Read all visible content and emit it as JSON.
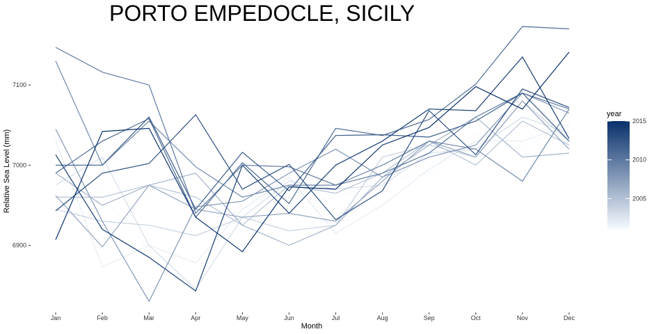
{
  "chart_data": {
    "type": "line",
    "title": "PORTO EMPEDOCLE, SICILY",
    "xlabel": "Month",
    "ylabel": "Relative Sea Level (mm)",
    "categories": [
      "Jan",
      "Feb",
      "Mar",
      "Apr",
      "May",
      "Jun",
      "Jul",
      "Aug",
      "Sep",
      "Oct",
      "Nov",
      "Dec"
    ],
    "yticks": [
      6900,
      7000,
      7100
    ],
    "ylim": [
      6818,
      7180
    ],
    "grid": false,
    "legend": {
      "title": "year",
      "position": "right",
      "range": [
        2001,
        2015
      ],
      "ticks": [
        2005,
        2010,
        2015
      ],
      "color_low": "#f7fbff",
      "color_high": "#08306b"
    },
    "series": [
      {
        "year": 2001,
        "values": [
          7035,
          6960,
          6895,
          6850,
          6960,
          6950,
          6960,
          6980,
          6990,
          7040,
          7020,
          7055
        ]
      },
      {
        "year": 2002,
        "values": [
          7030,
          6873,
          6900,
          6878,
          6945,
          6985,
          6915,
          6950,
          6995,
          7030,
          7030,
          7050
        ]
      },
      {
        "year": 2003,
        "values": [
          6975,
          7010,
          6900,
          6845,
          6935,
          6980,
          6970,
          6975,
          7015,
          7020,
          7060,
          7040
        ]
      },
      {
        "year": 2004,
        "values": [
          6945,
          6930,
          6925,
          6912,
          6935,
          6918,
          6925,
          7010,
          7025,
          7010,
          7080,
          7030
        ]
      },
      {
        "year": 2005,
        "values": [
          6960,
          6960,
          6975,
          6960,
          6925,
          6975,
          6965,
          6990,
          7030,
          7000,
          7055,
          7025
        ]
      },
      {
        "year": 2006,
        "values": [
          6990,
          6950,
          6975,
          6990,
          6925,
          6900,
          6925,
          6985,
          7025,
          7060,
          7010,
          7015
        ]
      },
      {
        "year": 2007,
        "values": [
          6962,
          6898,
          6975,
          6945,
          6935,
          6940,
          6930,
          6980,
          7030,
          7010,
          7080,
          7020
        ]
      },
      {
        "year": 2008,
        "values": [
          7045,
          6930,
          6830,
          6948,
          6955,
          6990,
          7020,
          6985,
          7010,
          7025,
          7090,
          7065
        ]
      },
      {
        "year": 2009,
        "values": [
          7130,
          7000,
          7055,
          6998,
          6960,
          6975,
          6975,
          7000,
          7030,
          7020,
          6980,
          7070
        ]
      },
      {
        "year": 2010,
        "values": [
          7147,
          7116,
          7100,
          6940,
          7000,
          6998,
          6975,
          6990,
          7015,
          7060,
          7090,
          7070
        ]
      },
      {
        "year": 2011,
        "values": [
          6990,
          7030,
          7058,
          6935,
          7003,
          6952,
          7046,
          7037,
          7057,
          7101,
          7173,
          7170
        ]
      },
      {
        "year": 2012,
        "values": [
          7000,
          7000,
          7060,
          6945,
          7016,
          6968,
          7037,
          7038,
          7035,
          7055,
          7090,
          7030
        ]
      },
      {
        "year": 2013,
        "values": [
          6943,
          6990,
          7002,
          7063,
          6970,
          7001,
          6932,
          6968,
          7068,
          7013,
          7095,
          7072
        ]
      },
      {
        "year": 2014,
        "values": [
          7013,
          6920,
          6885,
          6843,
          7000,
          6940,
          7000,
          7030,
          7070,
          7068,
          7135,
          7033
        ]
      },
      {
        "year": 2015,
        "values": [
          6907,
          7042,
          7046,
          6935,
          6892,
          6973,
          6970,
          7025,
          7047,
          7098,
          7070,
          7141
        ]
      }
    ]
  }
}
